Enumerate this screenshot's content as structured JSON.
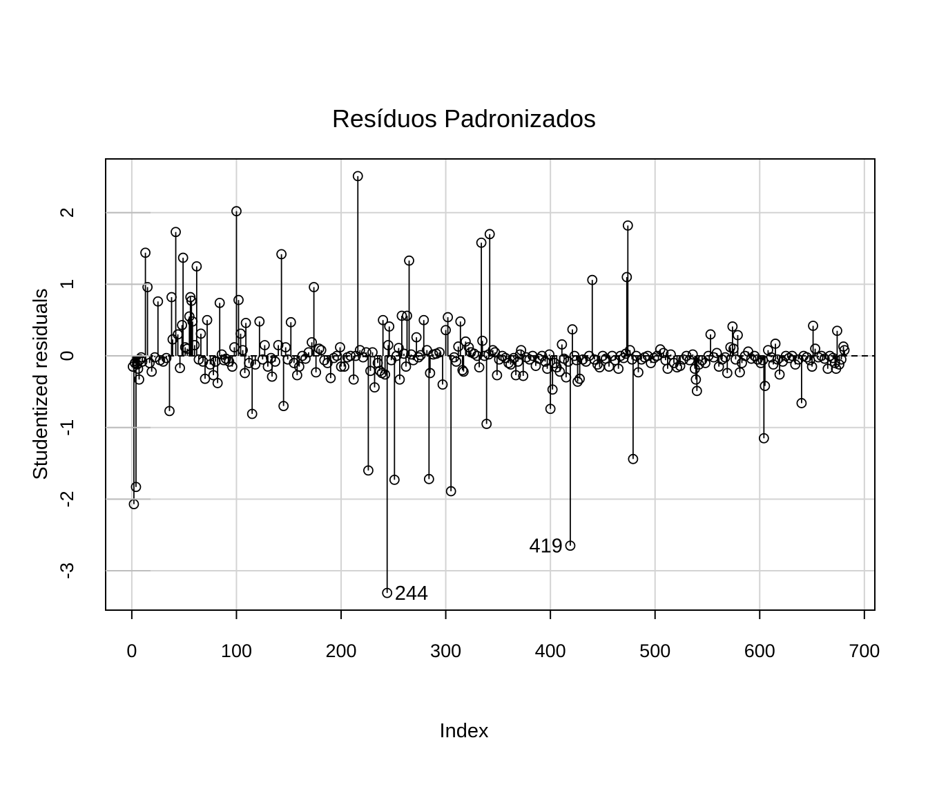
{
  "chart_data": {
    "type": "scatter",
    "style": "index-plot with vertical lines to zero",
    "title": "Resíduos Padronizados",
    "xlabel": "Index",
    "ylabel": "Studentized residuals",
    "xlim": [
      -25,
      710
    ],
    "ylim": [
      -3.55,
      2.75
    ],
    "xticks": [
      0,
      100,
      200,
      300,
      400,
      500,
      600,
      700
    ],
    "xtick_labels": [
      "0",
      "100",
      "200",
      "300",
      "400",
      "500",
      "600",
      "700"
    ],
    "yticks": [
      -3,
      -2,
      -1,
      0,
      1,
      2
    ],
    "ytick_labels": [
      "-3",
      "-2",
      "-1",
      "0",
      "1",
      "2"
    ],
    "grid": true,
    "reference_line": {
      "y": 0,
      "style": "dashed"
    },
    "marker": "open-circle",
    "labeled_points": [
      {
        "index": 244,
        "label": "244",
        "position": "right"
      },
      {
        "index": 419,
        "label": "419",
        "position": "left"
      }
    ],
    "points": [
      [
        1,
        -0.15
      ],
      [
        2,
        -2.07
      ],
      [
        3,
        -0.1
      ],
      [
        4,
        -1.83
      ],
      [
        5,
        -0.12
      ],
      [
        6,
        -0.18
      ],
      [
        7,
        -0.33
      ],
      [
        8,
        -0.05
      ],
      [
        9,
        -0.02
      ],
      [
        10,
        -0.08
      ],
      [
        13,
        1.44
      ],
      [
        15,
        0.96
      ],
      [
        17,
        -0.1
      ],
      [
        19,
        -0.22
      ],
      [
        22,
        -0.02
      ],
      [
        25,
        0.76
      ],
      [
        27,
        -0.06
      ],
      [
        30,
        -0.08
      ],
      [
        33,
        -0.03
      ],
      [
        36,
        -0.77
      ],
      [
        38,
        0.82
      ],
      [
        39,
        0.23
      ],
      [
        42,
        1.73
      ],
      [
        44,
        0.3
      ],
      [
        46,
        -0.17
      ],
      [
        48,
        0.43
      ],
      [
        49,
        1.37
      ],
      [
        51,
        0.12
      ],
      [
        53,
        0.1
      ],
      [
        55,
        0.55
      ],
      [
        56,
        0.82
      ],
      [
        57,
        0.77
      ],
      [
        58,
        0.48
      ],
      [
        60,
        0.15
      ],
      [
        62,
        1.25
      ],
      [
        64,
        -0.05
      ],
      [
        66,
        0.31
      ],
      [
        68,
        -0.08
      ],
      [
        70,
        -0.32
      ],
      [
        72,
        0.5
      ],
      [
        75,
        -0.12
      ],
      [
        78,
        -0.27
      ],
      [
        80,
        -0.08
      ],
      [
        82,
        -0.38
      ],
      [
        84,
        0.74
      ],
      [
        86,
        0.02
      ],
      [
        88,
        -0.06
      ],
      [
        90,
        -0.04
      ],
      [
        93,
        -0.08
      ],
      [
        96,
        -0.15
      ],
      [
        98,
        0.12
      ],
      [
        100,
        2.02
      ],
      [
        102,
        0.78
      ],
      [
        104,
        0.31
      ],
      [
        106,
        0.08
      ],
      [
        108,
        -0.24
      ],
      [
        109,
        0.46
      ],
      [
        112,
        -0.1
      ],
      [
        115,
        -0.81
      ],
      [
        118,
        -0.12
      ],
      [
        122,
        0.48
      ],
      [
        125,
        -0.05
      ],
      [
        127,
        0.15
      ],
      [
        130,
        -0.15
      ],
      [
        133,
        -0.03
      ],
      [
        134,
        -0.29
      ],
      [
        137,
        -0.08
      ],
      [
        140,
        0.15
      ],
      [
        143,
        1.42
      ],
      [
        145,
        -0.7
      ],
      [
        147,
        0.12
      ],
      [
        149,
        -0.05
      ],
      [
        152,
        0.47
      ],
      [
        155,
        -0.1
      ],
      [
        158,
        -0.27
      ],
      [
        160,
        -0.15
      ],
      [
        163,
        0.0
      ],
      [
        166,
        -0.04
      ],
      [
        169,
        0.05
      ],
      [
        172,
        0.19
      ],
      [
        174,
        0.96
      ],
      [
        176,
        -0.23
      ],
      [
        179,
        0.1
      ],
      [
        181,
        0.08
      ],
      [
        184,
        -0.06
      ],
      [
        187,
        -0.1
      ],
      [
        190,
        -0.31
      ],
      [
        193,
        -0.03
      ],
      [
        196,
        0.0
      ],
      [
        199,
        0.12
      ],
      [
        200,
        -0.15
      ],
      [
        203,
        -0.15
      ],
      [
        206,
        -0.02
      ],
      [
        209,
        0.0
      ],
      [
        212,
        -0.33
      ],
      [
        214,
        0.0
      ],
      [
        216,
        2.51
      ],
      [
        218,
        0.08
      ],
      [
        221,
        -0.02
      ],
      [
        224,
        0.05
      ],
      [
        226,
        -1.6
      ],
      [
        228,
        -0.21
      ],
      [
        230,
        0.05
      ],
      [
        232,
        -0.44
      ],
      [
        235,
        -0.1
      ],
      [
        237,
        -0.21
      ],
      [
        239,
        -0.24
      ],
      [
        240,
        0.5
      ],
      [
        242,
        -0.26
      ],
      [
        244,
        -3.31
      ],
      [
        245,
        0.15
      ],
      [
        246,
        0.41
      ],
      [
        248,
        -0.06
      ],
      [
        251,
        -1.73
      ],
      [
        253,
        0.0
      ],
      [
        255,
        0.11
      ],
      [
        256,
        -0.33
      ],
      [
        258,
        0.56
      ],
      [
        260,
        0.03
      ],
      [
        262,
        -0.15
      ],
      [
        263,
        0.56
      ],
      [
        265,
        1.33
      ],
      [
        267,
        0.02
      ],
      [
        269,
        -0.06
      ],
      [
        272,
        0.26
      ],
      [
        274,
        -0.02
      ],
      [
        276,
        0.01
      ],
      [
        279,
        0.5
      ],
      [
        282,
        0.08
      ],
      [
        284,
        -1.72
      ],
      [
        285,
        -0.24
      ],
      [
        288,
        0.02
      ],
      [
        291,
        0.03
      ],
      [
        294,
        0.05
      ],
      [
        297,
        -0.4
      ],
      [
        300,
        0.36
      ],
      [
        302,
        0.54
      ],
      [
        305,
        -1.89
      ],
      [
        308,
        -0.02
      ],
      [
        310,
        -0.08
      ],
      [
        312,
        0.13
      ],
      [
        314,
        0.48
      ],
      [
        316,
        -0.2
      ],
      [
        317,
        -0.22
      ],
      [
        319,
        0.2
      ],
      [
        322,
        0.12
      ],
      [
        324,
        0.05
      ],
      [
        327,
        0.03
      ],
      [
        330,
        0.0
      ],
      [
        332,
        -0.16
      ],
      [
        334,
        1.58
      ],
      [
        335,
        0.21
      ],
      [
        337,
        0.0
      ],
      [
        339,
        -0.95
      ],
      [
        341,
        0.02
      ],
      [
        342,
        1.7
      ],
      [
        345,
        0.08
      ],
      [
        347,
        0.05
      ],
      [
        349,
        -0.27
      ],
      [
        351,
        -0.05
      ],
      [
        354,
        0.0
      ],
      [
        357,
        -0.03
      ],
      [
        360,
        -0.1
      ],
      [
        362,
        -0.12
      ],
      [
        365,
        -0.03
      ],
      [
        367,
        -0.27
      ],
      [
        369,
        -0.08
      ],
      [
        371,
        0.02
      ],
      [
        372,
        0.08
      ],
      [
        374,
        -0.28
      ],
      [
        377,
        -0.02
      ],
      [
        380,
        -0.05
      ],
      [
        383,
        0.0
      ],
      [
        386,
        -0.14
      ],
      [
        389,
        -0.04
      ],
      [
        392,
        0.0
      ],
      [
        395,
        -0.08
      ],
      [
        397,
        -0.18
      ],
      [
        399,
        0.02
      ],
      [
        400,
        -0.74
      ],
      [
        402,
        -0.47
      ],
      [
        404,
        -0.1
      ],
      [
        406,
        -0.16
      ],
      [
        409,
        -0.22
      ],
      [
        411,
        0.16
      ],
      [
        413,
        -0.04
      ],
      [
        415,
        -0.3
      ],
      [
        417,
        -0.08
      ],
      [
        419,
        -2.65
      ],
      [
        421,
        0.37
      ],
      [
        423,
        0.0
      ],
      [
        425,
        -0.06
      ],
      [
        426,
        -0.36
      ],
      [
        428,
        -0.32
      ],
      [
        431,
        -0.05
      ],
      [
        434,
        -0.08
      ],
      [
        437,
        0.0
      ],
      [
        440,
        1.06
      ],
      [
        442,
        -0.05
      ],
      [
        445,
        -0.12
      ],
      [
        447,
        -0.16
      ],
      [
        450,
        0.0
      ],
      [
        453,
        -0.04
      ],
      [
        456,
        -0.15
      ],
      [
        459,
        0.0
      ],
      [
        462,
        -0.06
      ],
      [
        465,
        -0.18
      ],
      [
        467,
        0.0
      ],
      [
        470,
        -0.03
      ],
      [
        472,
        0.03
      ],
      [
        473,
        1.1
      ],
      [
        474,
        1.82
      ],
      [
        476,
        0.08
      ],
      [
        478,
        -0.05
      ],
      [
        479,
        -1.44
      ],
      [
        482,
        0.0
      ],
      [
        484,
        -0.23
      ],
      [
        487,
        -0.05
      ],
      [
        490,
        -0.02
      ],
      [
        493,
        0.0
      ],
      [
        496,
        -0.1
      ],
      [
        499,
        -0.03
      ],
      [
        502,
        0.0
      ],
      [
        505,
        0.09
      ],
      [
        508,
        0.04
      ],
      [
        510,
        -0.06
      ],
      [
        512,
        -0.18
      ],
      [
        515,
        0.02
      ],
      [
        518,
        -0.1
      ],
      [
        521,
        -0.16
      ],
      [
        524,
        -0.14
      ],
      [
        527,
        -0.05
      ],
      [
        530,
        0.0
      ],
      [
        533,
        -0.06
      ],
      [
        536,
        0.02
      ],
      [
        538,
        -0.18
      ],
      [
        539,
        -0.33
      ],
      [
        540,
        -0.49
      ],
      [
        542,
        -0.12
      ],
      [
        545,
        -0.06
      ],
      [
        548,
        -0.1
      ],
      [
        551,
        0.0
      ],
      [
        553,
        0.3
      ],
      [
        556,
        -0.02
      ],
      [
        559,
        0.04
      ],
      [
        561,
        -0.15
      ],
      [
        564,
        -0.05
      ],
      [
        567,
        -0.02
      ],
      [
        569,
        -0.24
      ],
      [
        572,
        0.12
      ],
      [
        574,
        0.41
      ],
      [
        575,
        0.1
      ],
      [
        577,
        -0.05
      ],
      [
        579,
        0.29
      ],
      [
        581,
        -0.23
      ],
      [
        583,
        -0.1
      ],
      [
        586,
        0.0
      ],
      [
        589,
        0.06
      ],
      [
        592,
        -0.04
      ],
      [
        595,
        0.0
      ],
      [
        598,
        -0.05
      ],
      [
        601,
        -0.1
      ],
      [
        603,
        -0.06
      ],
      [
        604,
        -1.15
      ],
      [
        605,
        -0.42
      ],
      [
        608,
        0.08
      ],
      [
        611,
        -0.02
      ],
      [
        613,
        -0.12
      ],
      [
        615,
        0.17
      ],
      [
        617,
        -0.05
      ],
      [
        619,
        -0.26
      ],
      [
        622,
        -0.08
      ],
      [
        625,
        0.0
      ],
      [
        628,
        -0.03
      ],
      [
        631,
        0.0
      ],
      [
        634,
        -0.12
      ],
      [
        637,
        -0.05
      ],
      [
        640,
        -0.66
      ],
      [
        642,
        0.0
      ],
      [
        645,
        -0.02
      ],
      [
        648,
        -0.06
      ],
      [
        650,
        -0.15
      ],
      [
        651,
        0.42
      ],
      [
        653,
        0.1
      ],
      [
        656,
        -0.02
      ],
      [
        659,
        0.0
      ],
      [
        662,
        -0.04
      ],
      [
        665,
        -0.18
      ],
      [
        667,
        0.0
      ],
      [
        670,
        -0.03
      ],
      [
        672,
        -0.1
      ],
      [
        673,
        -0.18
      ],
      [
        674,
        0.35
      ],
      [
        676,
        -0.12
      ],
      [
        678,
        -0.05
      ],
      [
        680,
        0.13
      ],
      [
        681,
        0.08
      ]
    ]
  }
}
